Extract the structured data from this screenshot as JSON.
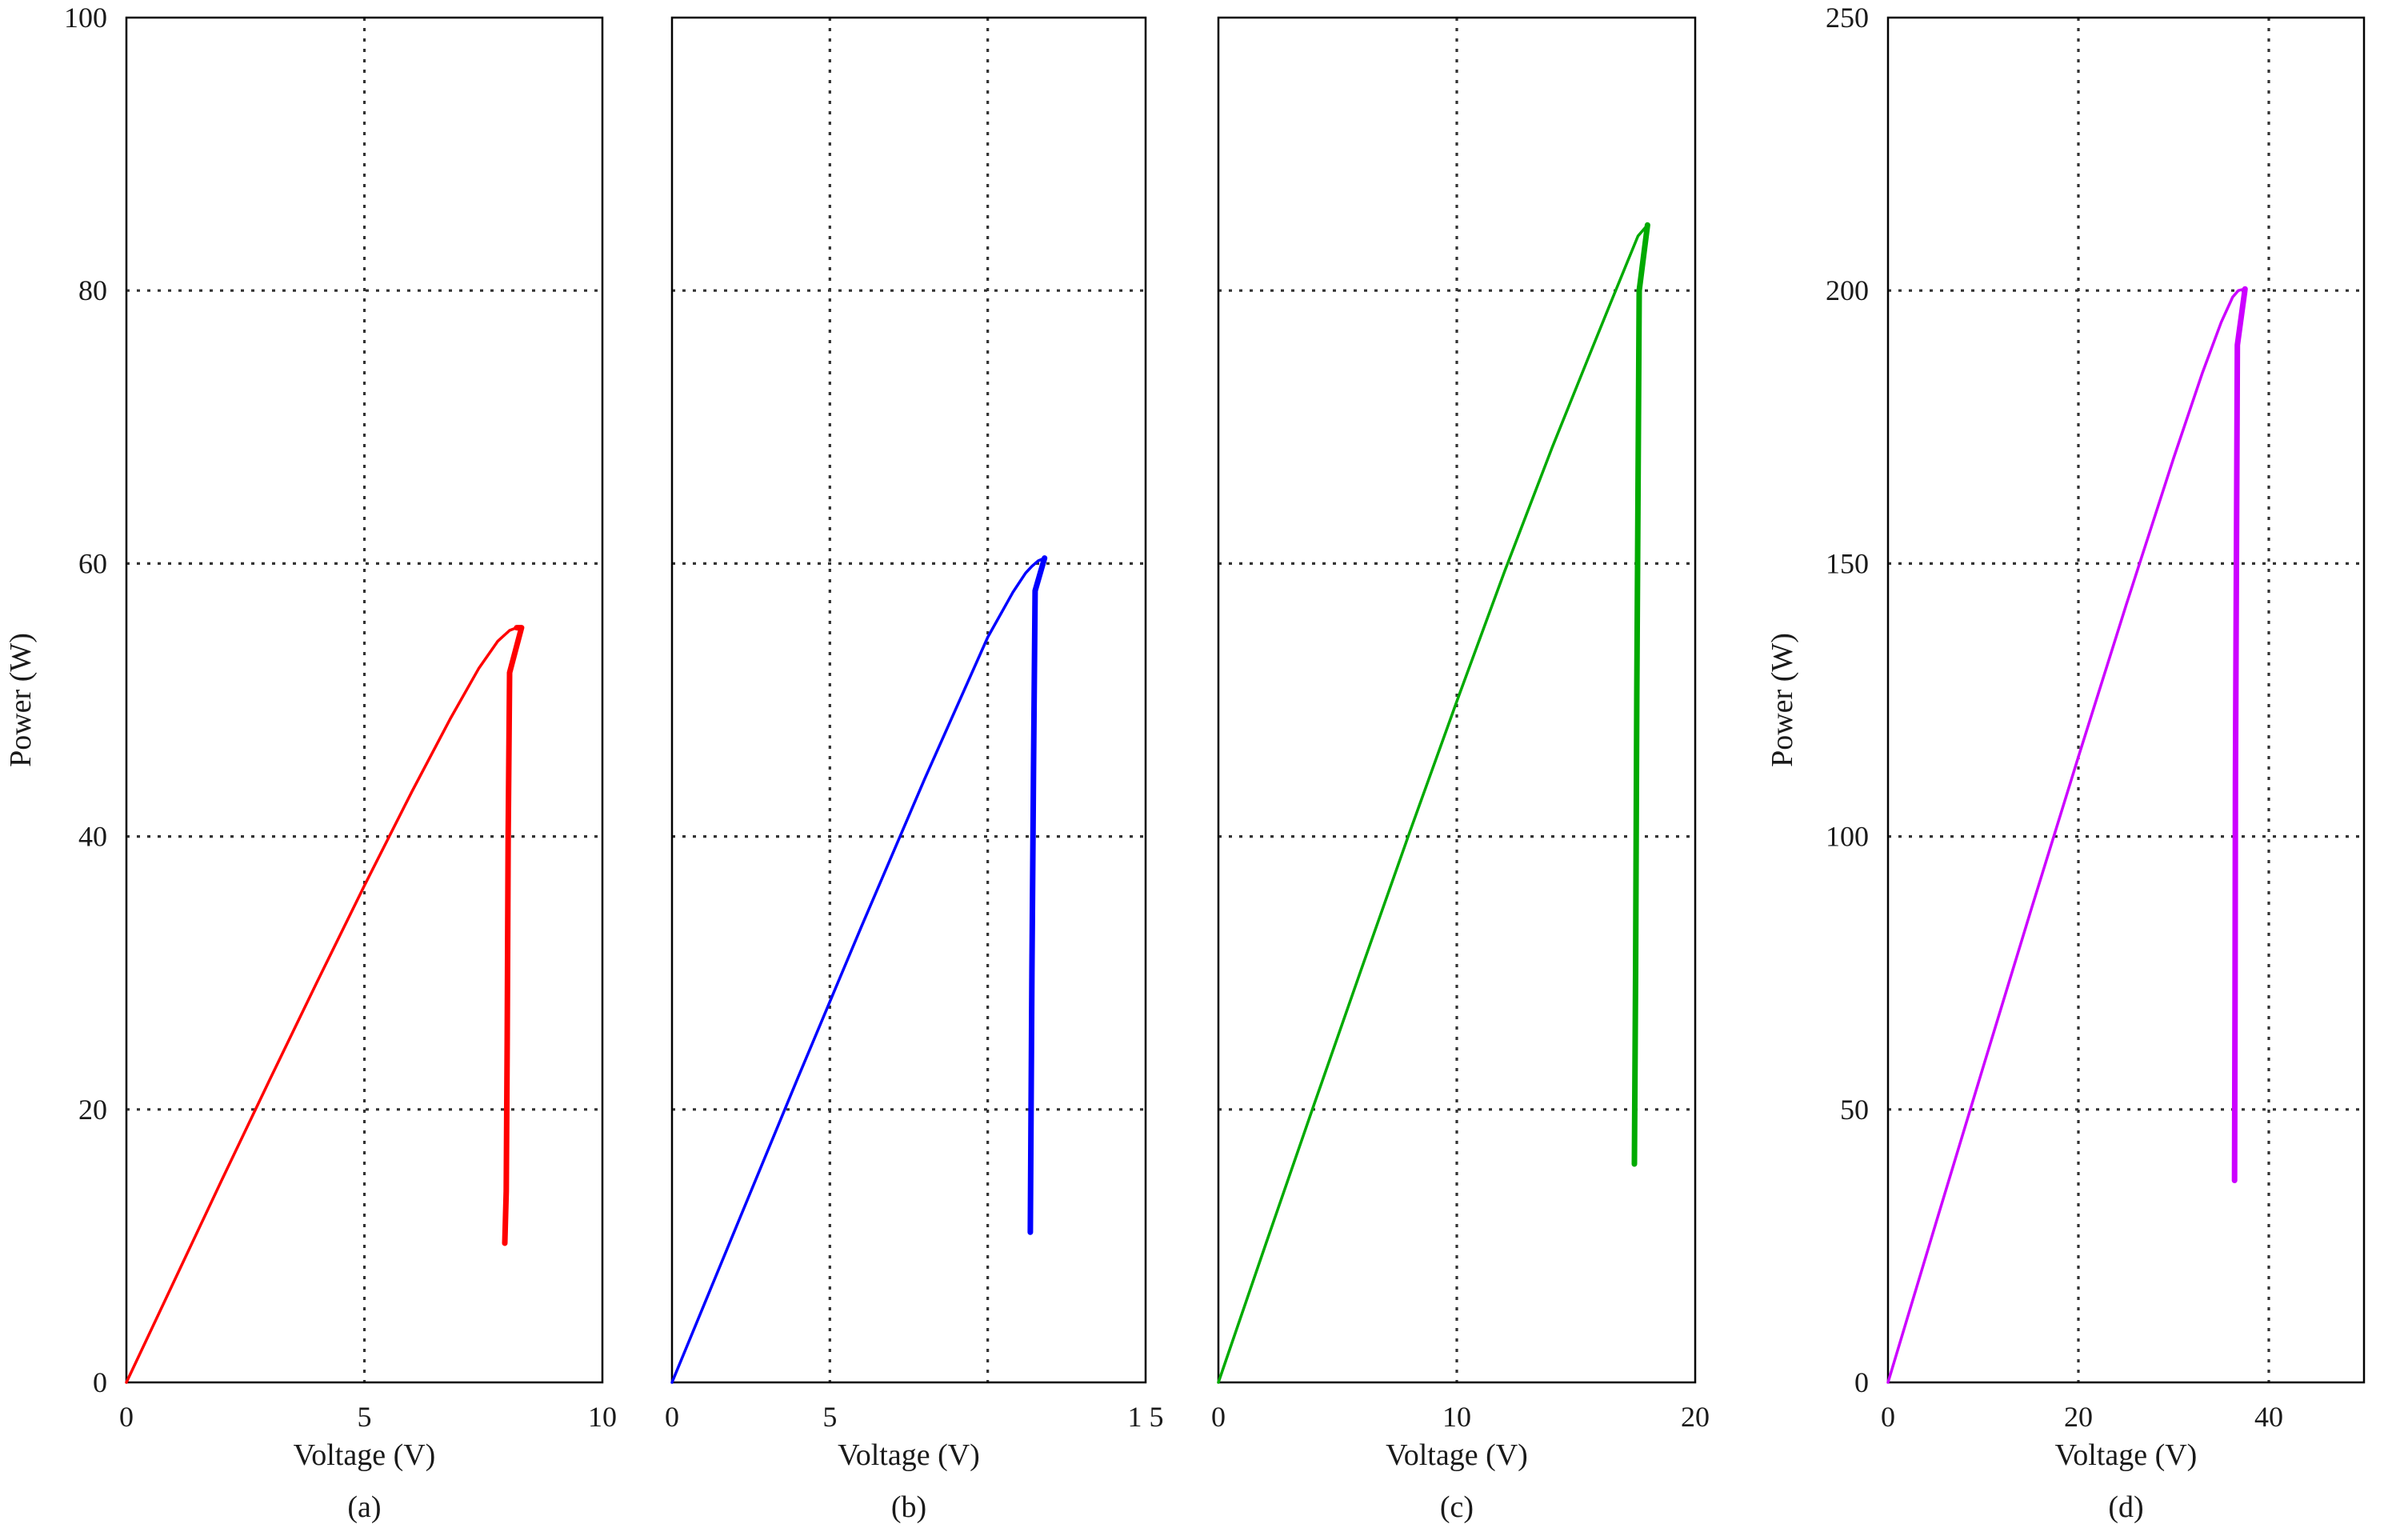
{
  "chart_data": [
    {
      "type": "line",
      "panel_label": "(a)",
      "xlabel": "Voltage (V)",
      "ylabel": "Power (W)",
      "xlim": [
        0,
        10
      ],
      "ylim": [
        0,
        100
      ],
      "x_ticks": [
        0,
        5,
        10
      ],
      "x_tick_labels": [
        "0",
        "5",
        "10"
      ],
      "y_ticks": [
        0,
        20,
        40,
        60,
        80,
        100
      ],
      "y_tick_labels": [
        "0",
        "20",
        "40",
        "60",
        "80",
        "100"
      ],
      "grid": true,
      "color": "#ff0000",
      "series": [
        {
          "x": [
            0,
            1,
            2,
            3,
            4,
            5,
            6,
            6.8,
            7.4,
            7.8,
            8.05,
            8.2,
            8.3,
            8.05,
            8.02,
            8.0,
            7.98,
            7.95
          ],
          "y": [
            0,
            7.4,
            14.8,
            22.1,
            29.3,
            36.4,
            43.3,
            48.6,
            52.3,
            54.3,
            55.1,
            55.3,
            55.3,
            52.0,
            40.0,
            25.0,
            14.0,
            10.2
          ]
        }
      ]
    },
    {
      "type": "line",
      "panel_label": "(b)",
      "xlabel": "Voltage (V)",
      "ylabel": "",
      "xlim": [
        0,
        15
      ],
      "ylim": [
        0,
        100
      ],
      "x_ticks": [
        0,
        5,
        15
      ],
      "x_tick_labels": [
        "0",
        "5",
        "1 5"
      ],
      "y_ticks": [],
      "y_tick_labels": [],
      "grid": true,
      "color": "#0000ff",
      "series": [
        {
          "x": [
            0,
            2,
            4,
            6,
            8,
            10,
            10.8,
            11.2,
            11.4,
            11.6,
            11.8,
            11.5,
            11.45,
            11.4,
            11.35
          ],
          "y": [
            0,
            11.2,
            22.4,
            33.4,
            44.2,
            54.6,
            57.9,
            59.3,
            59.8,
            60.2,
            60.4,
            58.0,
            45.0,
            30.0,
            11.0
          ]
        }
      ]
    },
    {
      "type": "line",
      "panel_label": "(c)",
      "xlabel": "Voltage (V)",
      "ylabel": "",
      "xlim": [
        0,
        20
      ],
      "ylim": [
        0,
        100
      ],
      "x_ticks": [
        0,
        10,
        20
      ],
      "x_tick_labels": [
        "0",
        "10",
        "20"
      ],
      "y_ticks": [],
      "y_tick_labels": [],
      "grid": true,
      "color": "#00aa00",
      "series": [
        {
          "x": [
            0,
            2,
            4,
            6,
            8,
            10,
            12,
            14,
            15.5,
            16.5,
            17.2,
            17.6,
            18.0,
            17.65,
            17.6,
            17.55,
            17.5,
            17.45
          ],
          "y": [
            0,
            10.2,
            20.3,
            30.3,
            40.2,
            49.9,
            59.4,
            68.5,
            75.0,
            79.3,
            82.3,
            84.0,
            84.8,
            80.0,
            65.0,
            50.5,
            30.0,
            16.0
          ]
        }
      ]
    },
    {
      "type": "line",
      "panel_label": "(d)",
      "xlabel": "Voltage (V)",
      "ylabel": "Power (W)",
      "xlim": [
        0,
        50
      ],
      "ylim": [
        0,
        250
      ],
      "x_ticks": [
        0,
        20,
        40
      ],
      "x_tick_labels": [
        "0",
        "20",
        "40"
      ],
      "y_ticks": [
        0,
        50,
        100,
        150,
        200,
        250
      ],
      "y_tick_labels": [
        "0",
        "50",
        "100",
        "150",
        "200",
        "250"
      ],
      "grid": true,
      "color": "#cc00ff",
      "series": [
        {
          "x": [
            0,
            5,
            10,
            15,
            20,
            25,
            30,
            33,
            35,
            36.2,
            36.8,
            37.5,
            36.7,
            36.6,
            36.5,
            36.45,
            36.4
          ],
          "y": [
            0,
            29.0,
            57.8,
            86.4,
            114.6,
            142.3,
            169.3,
            184.8,
            194.2,
            198.8,
            200.0,
            200.3,
            190.0,
            150.0,
            110.0,
            70.0,
            37.0
          ]
        }
      ]
    }
  ]
}
